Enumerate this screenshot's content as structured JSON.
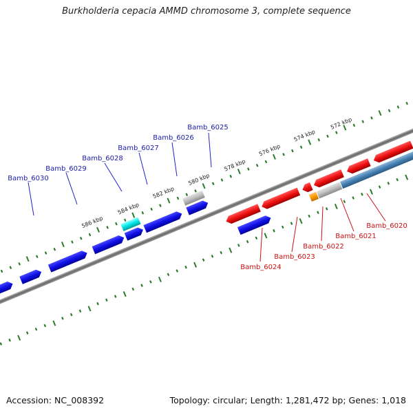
{
  "title": "Burkholderia cepacia AMMD chromosome 3, complete sequence",
  "footer": {
    "accession": "Accession: NC_008392",
    "info": "Topology: circular; Length: 1,281,472 bp; Genes: 1,018"
  },
  "colors": {
    "forward": "#1010e6",
    "reverse": "#e61010",
    "forward_label": "#1a1aaa",
    "reverse_label": "#cc1111",
    "tick": "#2a7a2a",
    "backbone": "#777777"
  },
  "kbp_labels": [
    "572 kbp",
    "574 kbp",
    "576 kbp",
    "578 kbp",
    "580 kbp",
    "582 kbp",
    "584 kbp",
    "586 kbp"
  ],
  "forward_genes": [
    "Bamb_6025",
    "Bamb_6026",
    "Bamb_6027",
    "Bamb_6028",
    "Bamb_6029",
    "Bamb_6030"
  ],
  "reverse_genes": [
    "Bamb_6020",
    "Bamb_6021",
    "Bamb_6022",
    "Bamb_6023",
    "Bamb_6024"
  ]
}
